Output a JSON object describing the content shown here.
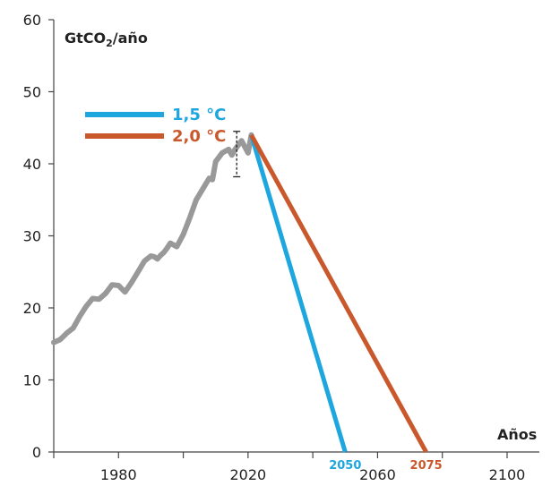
{
  "chart_data": {
    "type": "line",
    "ylabel_main": "GtCO",
    "ylabel_sub": "2",
    "ylabel_tail": "/año",
    "xlabel": "Años",
    "xlim": [
      1960,
      2100
    ],
    "ylim": [
      0,
      60
    ],
    "x_ticks": [
      {
        "value": 1980,
        "label": "1980"
      },
      {
        "value": 2020,
        "label": "2020"
      },
      {
        "value": 2060,
        "label": "2060"
      },
      {
        "value": 2100,
        "label": "2100"
      }
    ],
    "x_minor_ticks": [
      1960,
      1980,
      2000,
      2020,
      2040,
      2060,
      2080,
      2100
    ],
    "y_ticks": [
      {
        "value": 0,
        "label": "0"
      },
      {
        "value": 10,
        "label": "10"
      },
      {
        "value": 20,
        "label": "20"
      },
      {
        "value": 30,
        "label": "30"
      },
      {
        "value": 40,
        "label": "40"
      },
      {
        "value": 50,
        "label": "50"
      },
      {
        "value": 60,
        "label": "60"
      }
    ],
    "historical": {
      "color": "#999999",
      "x": [
        1960,
        1962,
        1964,
        1966,
        1968,
        1970,
        1972,
        1974,
        1976,
        1978,
        1980,
        1982,
        1984,
        1986,
        1988,
        1990,
        1991,
        1992,
        1993,
        1994,
        1995,
        1996,
        1998,
        2000,
        2002,
        2004,
        2006,
        2008,
        2009,
        2010,
        2012,
        2014,
        2015,
        2016,
        2018,
        2020,
        2021
      ],
      "y": [
        15.2,
        15.6,
        16.5,
        17.2,
        18.8,
        20.2,
        21.3,
        21.2,
        22.0,
        23.2,
        23.1,
        22.2,
        23.5,
        25.0,
        26.5,
        27.2,
        27.1,
        26.8,
        27.3,
        27.7,
        28.3,
        29.0,
        28.5,
        30.2,
        32.5,
        35.0,
        36.5,
        38.0,
        37.8,
        40.3,
        41.5,
        42.0,
        41.2,
        42.0,
        43.2,
        41.5,
        44.0
      ]
    },
    "uncertainty": {
      "x": 2016.5,
      "low": 38.2,
      "high": 44.5
    },
    "series": [
      {
        "name": "1,5 °C",
        "color": "#1ea6df",
        "x": [
          2021,
          2050
        ],
        "y": [
          44.0,
          0
        ],
        "zero_label": "2050"
      },
      {
        "name": "2,0 °C",
        "color": "#c9592c",
        "x": [
          2021,
          2075
        ],
        "y": [
          44.0,
          0
        ],
        "zero_label": "2075"
      }
    ],
    "legend_position": "top-left",
    "grid": false
  }
}
